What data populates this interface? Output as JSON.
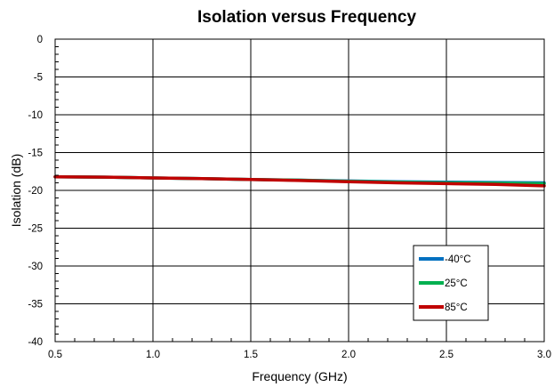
{
  "chart_data": {
    "type": "line",
    "title": "Isolation versus Frequency",
    "xlabel": "Frequency (GHz)",
    "ylabel": "Isolation (dB)",
    "xlim": [
      0.5,
      3.0
    ],
    "ylim": [
      -40,
      0
    ],
    "x_ticks": [
      0.5,
      1.0,
      1.5,
      2.0,
      2.5,
      3.0
    ],
    "x_tick_labels": [
      "0.5",
      "1.0",
      "1.5",
      "2.0",
      "2.5",
      "3.0"
    ],
    "y_ticks": [
      0,
      -5,
      -10,
      -15,
      -20,
      -25,
      -30,
      -35,
      -40
    ],
    "y_tick_labels": [
      "0",
      "-5",
      "-10",
      "-15",
      "-20",
      "-25",
      "-30",
      "-35",
      "-40"
    ],
    "grid": true,
    "legend_position": "bottom-right",
    "x": [
      0.5,
      0.75,
      1.0,
      1.25,
      1.5,
      1.75,
      2.0,
      2.25,
      2.5,
      2.75,
      3.0
    ],
    "series": [
      {
        "name": "-40°C",
        "color": "#0070c0",
        "values": [
          -18.2,
          -18.25,
          -18.35,
          -18.45,
          -18.55,
          -18.65,
          -18.75,
          -18.85,
          -18.9,
          -18.95,
          -19.0
        ]
      },
      {
        "name": "25°C",
        "color": "#00b050",
        "values": [
          -18.2,
          -18.25,
          -18.35,
          -18.45,
          -18.55,
          -18.65,
          -18.8,
          -18.9,
          -19.0,
          -19.05,
          -19.1
        ]
      },
      {
        "name": "85°C",
        "color": "#c00000",
        "values": [
          -18.2,
          -18.25,
          -18.35,
          -18.45,
          -18.55,
          -18.7,
          -18.85,
          -19.0,
          -19.1,
          -19.2,
          -19.4
        ]
      }
    ]
  }
}
